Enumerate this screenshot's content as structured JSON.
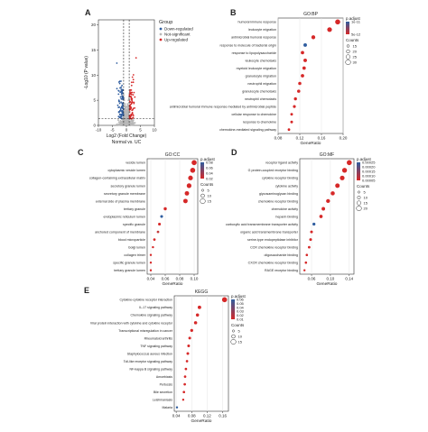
{
  "chart_data": [
    {
      "panel": "A",
      "type": "scatter",
      "xlabel": "Log2 (Fold Change)",
      "ylabel": "-Log10 (P value)",
      "subtitle": "Normal vs. UC",
      "xlim": [
        -10,
        10
      ],
      "ylim": [
        0,
        21
      ],
      "xticks": [
        "-10",
        "-5",
        "0",
        "5",
        "10"
      ],
      "yticks": [
        "0",
        "5",
        "10",
        "15",
        "20"
      ],
      "vlines": [
        -1,
        1
      ],
      "hline": 1.3,
      "legend_title": "Group",
      "legend": [
        {
          "name": "Down-regulated",
          "color": "#2f5d9f"
        },
        {
          "name": "Not-significant",
          "color": "#b8b8b8"
        },
        {
          "name": "Up-regulated",
          "color": "#d62828"
        }
      ]
    },
    {
      "panel": "B",
      "type": "scatter",
      "title": "GO:BP",
      "xlabel": "GeneRatio",
      "xlim": [
        0.08,
        0.2
      ],
      "xticks": [
        0.08,
        0.12,
        0.16,
        0.2
      ],
      "xtick_labels": [
        "0.08",
        "0.12",
        "0.16",
        "0.20"
      ],
      "legend_color_title": "p.adjust",
      "legend_color_labels": [
        "1e-11",
        "5e-12"
      ],
      "legend_size_title": "Counts",
      "legend_size_labels": [
        "15",
        "20",
        "25",
        "30"
      ],
      "categories": [
        "humoral immune response",
        "leukocyte migration",
        "antimicrobial humoral response",
        "response to molecule of bacterial origin",
        "response to lipopolysaccharide",
        "leukocyte chemotaxis",
        "myeloid leukocyte migration",
        "granulocyte migration",
        "neutrophil migration",
        "granulocyte chemotaxis",
        "neutrophil chemotaxis",
        "antimicrobial humoral immune response mediated by antimicrobial peptide",
        "cellular response to chemokine",
        "response to chemokine",
        "chemokine-mediated signaling pathway"
      ],
      "values": [
        0.19,
        0.175,
        0.145,
        0.13,
        0.125,
        0.13,
        0.128,
        0.125,
        0.12,
        0.118,
        0.112,
        0.11,
        0.105,
        0.105,
        0.1
      ],
      "counts": [
        30,
        28,
        23,
        21,
        20,
        21,
        20,
        20,
        19,
        19,
        18,
        17,
        16,
        16,
        15
      ],
      "colors": [
        "#d62828",
        "#d62828",
        "#d62828",
        "#2f5d9f",
        "#d62828",
        "#d62828",
        "#d62828",
        "#d62828",
        "#d62828",
        "#d62828",
        "#d62828",
        "#d62828",
        "#d62828",
        "#d62828",
        "#d62828"
      ]
    },
    {
      "panel": "C",
      "type": "scatter",
      "title": "GO:CC",
      "xlabel": "GeneRatio",
      "xlim": [
        0.035,
        0.105
      ],
      "xticks": [
        0.04,
        0.06,
        0.08,
        0.1
      ],
      "xtick_labels": [
        "0.04",
        "0.06",
        "0.08",
        "0.10"
      ],
      "legend_color_title": "p.adjust",
      "legend_color_labels": [
        "0.08",
        "0.06",
        "0.04",
        "0.02"
      ],
      "legend_size_title": "Counts",
      "legend_size_labels": [
        "5",
        "10",
        "15"
      ],
      "categories": [
        "vesicle lumen",
        "cytoplasmic vesicle lumen",
        "collagen-containing extracellular matrix",
        "secretory granule lumen",
        "secretory granule membrane",
        "external side of plasma membrane",
        "tertiary granule",
        "endoplasmic reticulum lumen",
        "specific granule",
        "anchored component of membrane",
        "blood microparticle",
        "Golgi lumen",
        "collagen trimer",
        "specific granule lumen",
        "tertiary granule lumen"
      ],
      "values": [
        0.1,
        0.098,
        0.095,
        0.093,
        0.09,
        0.088,
        0.06,
        0.055,
        0.052,
        0.05,
        0.045,
        0.043,
        0.04,
        0.04,
        0.04
      ],
      "counts": [
        15,
        15,
        14,
        14,
        13,
        13,
        9,
        8,
        8,
        7,
        7,
        6,
        6,
        6,
        6
      ],
      "colors": [
        "#d62828",
        "#d62828",
        "#d62828",
        "#d62828",
        "#d62828",
        "#d62828",
        "#d62828",
        "#2f5d9f",
        "#d62828",
        "#c23b3b",
        "#d62828",
        "#d62828",
        "#d62828",
        "#d62828",
        "#d62828"
      ]
    },
    {
      "panel": "D",
      "type": "scatter",
      "title": "GO:MF",
      "xlabel": "GeneRatio",
      "xlim": [
        0.035,
        0.15
      ],
      "xticks": [
        0.06,
        0.1,
        0.14
      ],
      "xtick_labels": [
        "0.06",
        "0.10",
        "0.14"
      ],
      "legend_color_title": "p.adjust",
      "legend_color_labels": [
        "0.00025",
        "0.00020",
        "0.00015",
        "0.00010",
        "0.00005"
      ],
      "legend_size_title": "Counts",
      "legend_size_labels": [
        "5",
        "10",
        "15",
        "20"
      ],
      "categories": [
        "receptor ligand activity",
        "G protein-coupled receptor binding",
        "cytokine receptor binding",
        "cytokine activity",
        "glycosaminoglycan binding",
        "chemokine receptor binding",
        "chemokine activity",
        "heparin binding",
        "carboxylic acid transmembrane transporter activity",
        "organic acid transmembrane transporter",
        "serine-type endopeptidase inhibitor",
        "CCR chemokine receptor binding",
        "oligosaccharide binding",
        "CXCR chemokine receptor binding",
        "RAGE receptor binding"
      ],
      "values": [
        0.14,
        0.13,
        0.125,
        0.115,
        0.105,
        0.095,
        0.085,
        0.08,
        0.065,
        0.06,
        0.058,
        0.055,
        0.05,
        0.048,
        0.045
      ],
      "counts": [
        20,
        19,
        18,
        17,
        15,
        14,
        12,
        11,
        9,
        8,
        8,
        7,
        6,
        6,
        5
      ],
      "colors": [
        "#d62828",
        "#d62828",
        "#d62828",
        "#d62828",
        "#d62828",
        "#d62828",
        "#d62828",
        "#d62828",
        "#2f5d9f",
        "#d62828",
        "#d62828",
        "#d62828",
        "#d62828",
        "#d62828",
        "#d62828"
      ]
    },
    {
      "panel": "E",
      "type": "scatter",
      "title": "KEGG",
      "xlabel": "GeneRatio",
      "xlim": [
        0.035,
        0.175
      ],
      "xticks": [
        0.04,
        0.08,
        0.12,
        0.16
      ],
      "xtick_labels": [
        "0.04",
        "0.08",
        "0.12",
        "0.16"
      ],
      "legend_color_title": "p.adjust",
      "legend_color_labels": [
        "0.06",
        "0.05",
        "0.04",
        "0.03",
        "0.02",
        "0.01"
      ],
      "legend_size_title": "Counts",
      "legend_size_labels": [
        "5",
        "10",
        "15"
      ],
      "categories": [
        "Cytokine-cytokine receptor interaction",
        "IL-17 signaling pathway",
        "Chemokine signaling pathway",
        "Viral protein interaction with cytokine and cytokine receptor",
        "Transcriptional misregulation in cancer",
        "Rheumatoid arthritis",
        "TNF signaling pathway",
        "Staphylococcus aureus infection",
        "Toll-like receptor signaling pathway",
        "NF-kappa B signaling pathway",
        "Amoebiasis",
        "Pertussis",
        "Bile secretion",
        "Leishmaniasis",
        "Malaria"
      ],
      "values": [
        0.165,
        0.1,
        0.095,
        0.09,
        0.08,
        0.075,
        0.072,
        0.07,
        0.068,
        0.065,
        0.063,
        0.062,
        0.06,
        0.058,
        0.042
      ],
      "counts": [
        16,
        10,
        9,
        9,
        8,
        7,
        7,
        7,
        6,
        6,
        6,
        6,
        6,
        5,
        5
      ],
      "colors": [
        "#d62828",
        "#d62828",
        "#d62828",
        "#d62828",
        "#d62828",
        "#d62828",
        "#d62828",
        "#d62828",
        "#d62828",
        "#d62828",
        "#d62828",
        "#d62828",
        "#d62828",
        "#d62828",
        "#2f5d9f"
      ]
    }
  ]
}
